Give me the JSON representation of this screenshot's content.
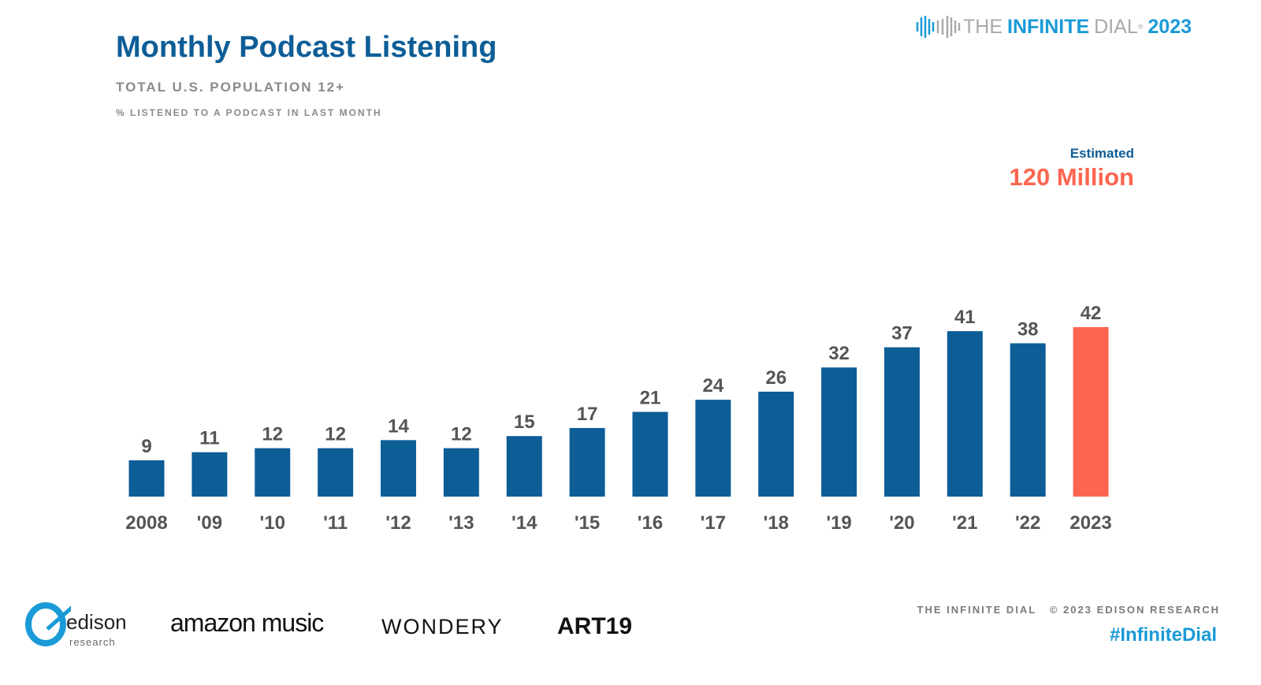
{
  "header": {
    "title": "Monthly Podcast Listening",
    "subtitle": "TOTAL U.S. POPULATION 12+",
    "note": "% LISTENED TO A PODCAST IN LAST MONTH"
  },
  "brand": {
    "the": "THE",
    "infinite": "INFINITE",
    "dial": "DIAL",
    "reg": "®",
    "year": "2023"
  },
  "callout": {
    "label": "Estimated",
    "value": "120 Million"
  },
  "chart_data": {
    "type": "bar",
    "categories": [
      "2008",
      "'09",
      "'10",
      "'11",
      "'12",
      "'13",
      "'14",
      "'15",
      "'16",
      "'17",
      "'18",
      "'19",
      "'20",
      "'21",
      "'22",
      "2023"
    ],
    "values": [
      9,
      11,
      12,
      12,
      14,
      12,
      15,
      17,
      21,
      24,
      26,
      32,
      37,
      41,
      38,
      42
    ],
    "colors": {
      "default": "#0d5d97",
      "highlight": "#fe6550"
    },
    "highlight_category": "2023",
    "data_labels": true,
    "grid": false,
    "ylim": [
      0,
      42
    ]
  },
  "footer": {
    "credit": "THE INFINITE DIAL   © 2023 EDISON RESEARCH",
    "hashtag": "#InfiniteDial"
  },
  "sponsors": [
    "edison",
    "research",
    "amazon music",
    "WONDERY",
    "ART19"
  ]
}
